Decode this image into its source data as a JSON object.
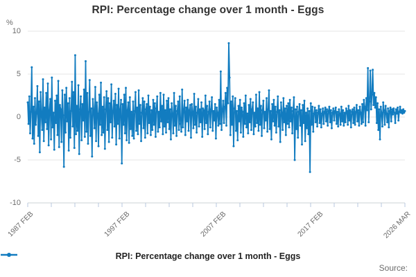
{
  "title": "RPI: Percentage change over 1 month - Eggs",
  "y_axis": {
    "unit": "%",
    "ticks": [
      10,
      5,
      0,
      -5,
      -10
    ],
    "min": -10,
    "max": 10
  },
  "x_axis": {
    "labels": [
      {
        "text": "1987 FEB",
        "index": 0
      },
      {
        "text": "1997 FEB",
        "index": 120
      },
      {
        "text": "2007 FEB",
        "index": 240
      },
      {
        "text": "2017 FEB",
        "index": 360
      },
      {
        "text": "2026 MAR",
        "index": 469
      }
    ],
    "minor_tick_count": 17
  },
  "legend": {
    "label": "RPI: Percentage change over 1 month - Eggs"
  },
  "source": {
    "label": "Source:"
  },
  "colors": {
    "series": "#127cc0",
    "grid": "#e6e6e6",
    "axis_line": "#cbd0d6",
    "tick_mark": "#b7c7df",
    "label_text": "#6b6b6b",
    "title_text": "#333333"
  },
  "chart_data": {
    "type": "line",
    "title": "RPI: Percentage change over 1 month - Eggs",
    "ylabel": "%",
    "ylim": [
      -10,
      10
    ],
    "x_start": "1987 FEB",
    "x_end": "2026 MAR",
    "x_frequency": "monthly",
    "grid": "horizontal",
    "legend_position": "bottom",
    "series": [
      {
        "name": "RPI: Percentage change over 1 month - Eggs",
        "values": [
          1.7,
          -0.8,
          2.4,
          -1.9,
          0.6,
          5.8,
          -2.5,
          1.2,
          -3.1,
          2.2,
          -0.9,
          0.4,
          3.6,
          -2.2,
          1.8,
          -4.1,
          2.9,
          0.2,
          -1.5,
          4.4,
          -2.8,
          1.1,
          -0.6,
          2.8,
          -1.4,
          3.9,
          -3.3,
          0.8,
          2.1,
          -2.6,
          4.6,
          -1.2,
          0.5,
          -3.8,
          1.9,
          -0.7,
          2.5,
          -2.1,
          4.2,
          -3.5,
          1.4,
          0.9,
          -2.9,
          3.1,
          0.2,
          -5.8,
          2.6,
          -1.8,
          3.4,
          -0.5,
          1.6,
          -3.9,
          2.2,
          -2.4,
          0.7,
          4.1,
          -1.1,
          2.9,
          -3.6,
          7.2,
          -2.0,
          1.3,
          -1.6,
          3.7,
          -4.3,
          0.9,
          2.4,
          -2.7,
          1.5,
          -0.4,
          3.2,
          -2.3,
          6.5,
          -1.7,
          2.8,
          -3.1,
          0.6,
          4.3,
          -2.2,
          1.0,
          -4.6,
          2.1,
          0.8,
          -1.3,
          3.5,
          -2.8,
          1.7,
          0.4,
          -3.4,
          2.6,
          -0.9,
          4.0,
          -2.1,
          1.2,
          -1.8,
          2.3,
          -3.7,
          0.9,
          3.0,
          -1.5,
          2.2,
          -2.9,
          1.6,
          -0.6,
          3.8,
          -2.4,
          0.7,
          1.9,
          -1.1,
          2.7,
          -3.2,
          1.4,
          -0.8,
          3.3,
          -2.5,
          0.9,
          2.0,
          -5.4,
          1.5,
          -0.9,
          2.6,
          -1.9,
          3.4,
          -2.7,
          0.8,
          1.7,
          -3.0,
          2.3,
          -1.4,
          0.6,
          -2.2,
          1.8,
          -2.5,
          0.7,
          2.9,
          -1.6,
          1.1,
          -2.0,
          3.1,
          -0.8,
          1.4,
          -2.8,
          0.5,
          2.2,
          -1.3,
          1.8,
          -2.4,
          0.9,
          1.5,
          -1.9,
          2.5,
          -0.7,
          1.2,
          -2.1,
          0.8,
          -1.5,
          2.0,
          -0.9,
          1.6,
          -2.3,
          1.0,
          2.4,
          -1.7,
          0.6,
          -1.2,
          2.8,
          -0.5,
          1.3,
          -2.0,
          2.6,
          -1.1,
          0.8,
          -1.8,
          1.9,
          -0.6,
          2.2,
          -1.4,
          0.9,
          -2.6,
          1.6,
          0.4,
          -1.9,
          2.8,
          -1.0,
          1.3,
          -2.2,
          0.7,
          1.8,
          -1.5,
          2.4,
          -0.8,
          -1.7,
          3.2,
          -1.2,
          0.9,
          1.9,
          -2.1,
          1.1,
          -0.5,
          2.0,
          -1.6,
          0.8,
          1.4,
          -2.4,
          1.5,
          0.6,
          -1.3,
          2.7,
          -0.9,
          1.2,
          -1.8,
          0.5,
          2.1,
          -1.1,
          0.9,
          -0.6,
          1.7,
          -2.3,
          1.0,
          0.8,
          -1.4,
          2.5,
          -0.7,
          1.3,
          -2.0,
          0.6,
          1.8,
          -1.2,
          0.9,
          2.3,
          -1.6,
          0.7,
          -0.4,
          1.5,
          -2.5,
          1.1,
          0.5,
          -1.0,
          2.0,
          -0.8,
          5.3,
          -1.5,
          0.8,
          1.9,
          -0.7,
          1.2,
          2.8,
          -1.0,
          3.4,
          1.6,
          8.6,
          4.6,
          -2.1,
          1.8,
          -0.9,
          2.4,
          -3.4,
          1.0,
          2.2,
          -1.6,
          0.7,
          -2.7,
          1.3,
          -0.5,
          2.0,
          -1.8,
          1.1,
          0.6,
          -2.3,
          1.6,
          -0.8,
          2.5,
          -1.2,
          0.4,
          -1.9,
          1.4,
          -0.6,
          2.1,
          -1.5,
          0.9,
          1.7,
          -2.0,
          0.5,
          -1.1,
          2.6,
          -0.7,
          1.0,
          -1.6,
          2.9,
          -0.9,
          1.3,
          -2.2,
          0.8,
          1.9,
          -1.3,
          0.6,
          -0.4,
          2.2,
          -1.7,
          0.9,
          3.1,
          -1.4,
          0.7,
          -2.6,
          1.5,
          -0.5,
          2.0,
          -1.0,
          1.2,
          -1.8,
          0.6,
          2.4,
          -1.1,
          0.8,
          -2.9,
          1.7,
          0.5,
          -1.5,
          2.2,
          -0.6,
          1.0,
          -2.1,
          1.3,
          -0.8,
          1.6,
          -1.2,
          2.0,
          -0.5,
          1.1,
          -1.9,
          0.7,
          2.3,
          -5.0,
          0.9,
          -1.4,
          1.2,
          -2.4,
          0.6,
          1.5,
          -1.0,
          0.8,
          -3.2,
          1.4,
          -0.7,
          1.9,
          -2.8,
          0.5,
          -1.3,
          1.0,
          -2.0,
          0.7,
          -6.4,
          1.6,
          -0.9,
          1.2,
          -1.7,
          0.4,
          1.1,
          -0.6,
          0.8,
          -1.1,
          0.5,
          1.3,
          -0.7,
          0.9,
          -1.2,
          0.4,
          1.0,
          -0.8,
          0.6,
          1.1,
          -0.5,
          0.9,
          -1.0,
          0.7,
          1.2,
          -0.6,
          0.8,
          -1.3,
          0.5,
          1.0,
          -0.4,
          0.7,
          1.1,
          -0.8,
          0.6,
          -1.1,
          0.9,
          0.4,
          -0.9,
          1.2,
          -0.5,
          0.8,
          -1.0,
          0.5,
          -0.6,
          1.0,
          0.7,
          -0.9,
          1.3,
          -0.4,
          0.8,
          -1.2,
          0.6,
          0.9,
          -0.7,
          1.1,
          -0.9,
          0.6,
          1.4,
          -0.5,
          0.8,
          -1.0,
          1.2,
          0.5,
          -0.8,
          1.5,
          -0.6,
          2.0,
          1.2,
          -1.0,
          2.2,
          0.8,
          5.7,
          -0.6,
          1.8,
          5.4,
          0.9,
          2.6,
          5.5,
          1.4,
          2.8,
          1.1,
          2.3,
          -0.7,
          1.6,
          -1.5,
          0.9,
          -2.6,
          1.2,
          0.5,
          -1.1,
          1.7,
          0.8,
          -0.9,
          1.3,
          0.4,
          -0.6,
          1.0,
          -1.2,
          0.7,
          1.1,
          -0.5,
          0.9,
          0.3,
          1.0,
          0.5,
          -0.7,
          0.9,
          0.4,
          1.1,
          -0.4,
          0.6,
          1.2,
          0.5,
          0.8,
          0.4,
          0.9,
          0.5,
          0.7
        ]
      }
    ]
  }
}
